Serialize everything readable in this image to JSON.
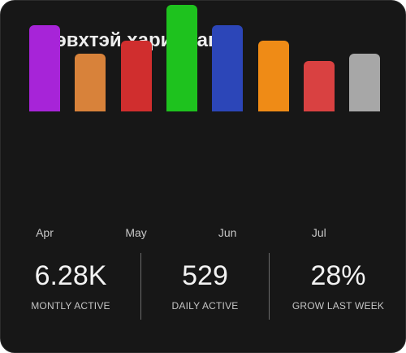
{
  "card": {
    "title": "Идэвхтэй харилцагч"
  },
  "chart_data": {
    "type": "bar",
    "title": "",
    "xlabel": "",
    "ylabel": "",
    "categories": [
      "Apr",
      "",
      "May",
      "",
      "Jun",
      "",
      "Jul",
      ""
    ],
    "values": [
      106,
      71,
      87,
      131,
      106,
      87,
      62,
      71
    ],
    "colors": [
      "#a724d8",
      "#d8823a",
      "#d02e2e",
      "#1ec21e",
      "#2c46b8",
      "#ef8b16",
      "#d94141",
      "#a7a7a7"
    ],
    "ylim": [
      0,
      131
    ],
    "axes_visible": false,
    "grid": false
  },
  "stats": [
    {
      "value": "6.28K",
      "label": "MONTLY ACTIVE"
    },
    {
      "value": "529",
      "label": "DAILY ACTIVE"
    },
    {
      "value": "28%",
      "label": "GROW LAST WEEK"
    }
  ]
}
